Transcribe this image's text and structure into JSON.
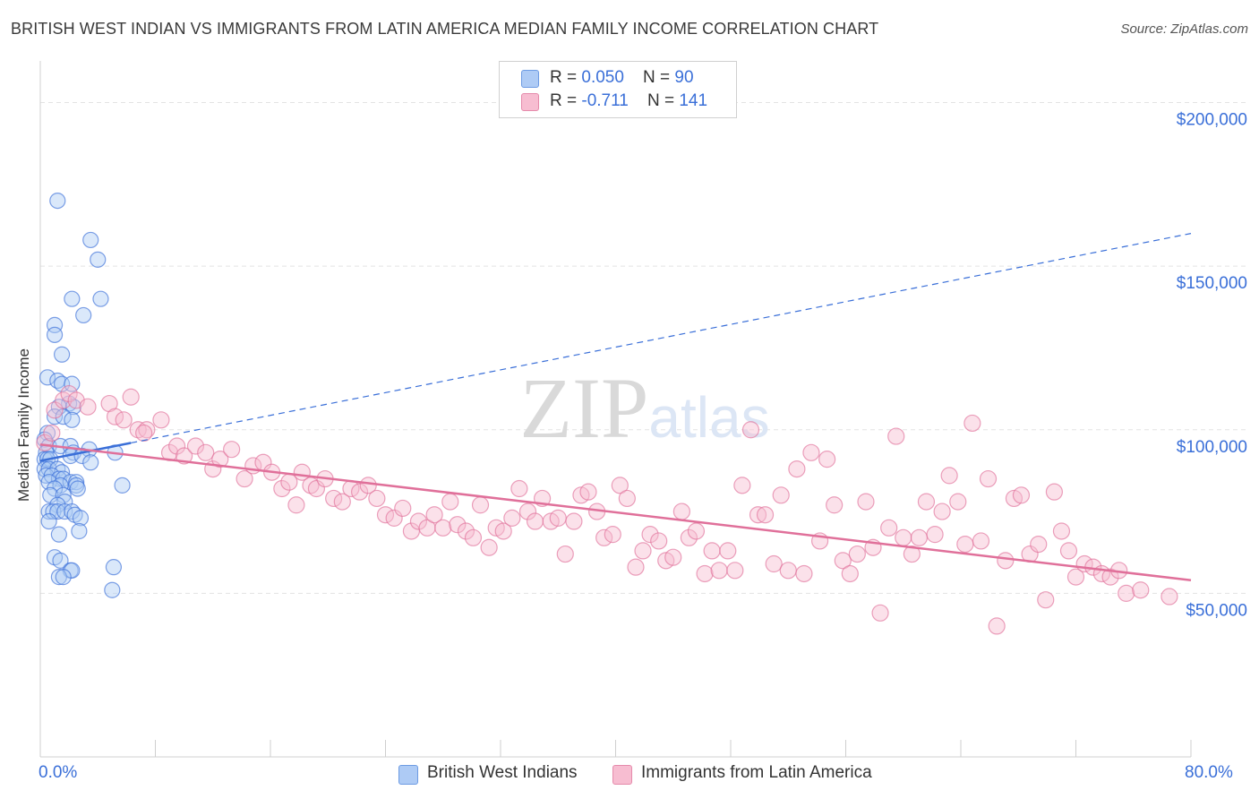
{
  "title": "BRITISH WEST INDIAN VS IMMIGRANTS FROM LATIN AMERICA MEDIAN FAMILY INCOME CORRELATION CHART",
  "source": "Source: ZipAtlas.com",
  "watermark": "ZIPatlas",
  "legend": {
    "rows": [
      {
        "r_label": "R = ",
        "r_value": "0.050",
        "n_label": "N = ",
        "n_value": "90",
        "color": "#aecbf5"
      },
      {
        "r_label": "R = ",
        "r_value": "-0.711",
        "n_label": "N = ",
        "n_value": "141",
        "color": "#f7bdd1"
      }
    ]
  },
  "bottom_legend": [
    {
      "label": "British West Indians",
      "color": "#aecbf5"
    },
    {
      "label": "Immigrants from Latin America",
      "color": "#f7bdd1"
    }
  ],
  "chart_data": {
    "type": "scatter",
    "ylabel": "Median Family Income",
    "x_tick_labels": [
      "0.0%",
      "80.0%"
    ],
    "y_tick_labels": [
      "$50,000",
      "$100,000",
      "$150,000",
      "$200,000"
    ],
    "xlim": [
      0,
      80
    ],
    "ylim": [
      0,
      210000
    ],
    "grid": true,
    "series": [
      {
        "name": "British West Indians",
        "color": "#3a6fd8",
        "fill": "#aecbf5",
        "trend": {
          "x": [
            0,
            80
          ],
          "y": [
            90500,
            160000
          ],
          "solid_until": 6.3
        },
        "points": [
          [
            1.2,
            170000
          ],
          [
            3.5,
            158000
          ],
          [
            4.0,
            152000
          ],
          [
            4.2,
            140000
          ],
          [
            2.2,
            140000
          ],
          [
            3.0,
            135000
          ],
          [
            1.0,
            132000
          ],
          [
            1.0,
            129000
          ],
          [
            1.5,
            123000
          ],
          [
            0.5,
            116000
          ],
          [
            1.2,
            115000
          ],
          [
            1.5,
            114000
          ],
          [
            2.2,
            114000
          ],
          [
            2.0,
            108000
          ],
          [
            1.3,
            107000
          ],
          [
            2.3,
            107000
          ],
          [
            1.0,
            104000
          ],
          [
            1.6,
            104000
          ],
          [
            2.2,
            103000
          ],
          [
            0.5,
            99000
          ],
          [
            0.3,
            97000
          ],
          [
            0.6,
            95000
          ],
          [
            1.4,
            95000
          ],
          [
            2.1,
            95000
          ],
          [
            3.4,
            94000
          ],
          [
            0.4,
            93000
          ],
          [
            2.3,
            93000
          ],
          [
            5.2,
            93000
          ],
          [
            2.1,
            92000
          ],
          [
            2.9,
            92000
          ],
          [
            0.3,
            91000
          ],
          [
            0.5,
            91000
          ],
          [
            0.7,
            91000
          ],
          [
            3.5,
            90000
          ],
          [
            0.3,
            88000
          ],
          [
            0.6,
            88000
          ],
          [
            1.2,
            88000
          ],
          [
            1.5,
            87000
          ],
          [
            0.4,
            86000
          ],
          [
            0.8,
            86000
          ],
          [
            1.3,
            85000
          ],
          [
            1.6,
            85000
          ],
          [
            0.6,
            84000
          ],
          [
            2.1,
            84000
          ],
          [
            2.5,
            84000
          ],
          [
            1.4,
            83000
          ],
          [
            2.5,
            83000
          ],
          [
            5.7,
            83000
          ],
          [
            1.0,
            82000
          ],
          [
            2.6,
            82000
          ],
          [
            0.7,
            80000
          ],
          [
            1.6,
            80000
          ],
          [
            1.7,
            78000
          ],
          [
            1.2,
            77000
          ],
          [
            0.6,
            75000
          ],
          [
            0.9,
            75000
          ],
          [
            1.2,
            75000
          ],
          [
            1.7,
            75000
          ],
          [
            2.2,
            75000
          ],
          [
            2.4,
            74000
          ],
          [
            2.8,
            73000
          ],
          [
            0.6,
            72000
          ],
          [
            1.3,
            68000
          ],
          [
            2.7,
            69000
          ],
          [
            1.0,
            61000
          ],
          [
            1.4,
            60000
          ],
          [
            5.1,
            58000
          ],
          [
            2.1,
            57000
          ],
          [
            2.2,
            57000
          ],
          [
            1.3,
            55000
          ],
          [
            1.6,
            55000
          ],
          [
            5.0,
            51000
          ]
        ]
      },
      {
        "name": "Immigrants from Latin America",
        "color": "#e0709a",
        "fill": "#f7bdd1",
        "trend": {
          "x": [
            0,
            80
          ],
          "y": [
            95500,
            54000
          ]
        },
        "points": [
          [
            0.3,
            96000
          ],
          [
            0.8,
            99000
          ],
          [
            1.0,
            106000
          ],
          [
            1.6,
            109000
          ],
          [
            2.0,
            111000
          ],
          [
            2.5,
            109000
          ],
          [
            3.3,
            107000
          ],
          [
            4.8,
            108000
          ],
          [
            5.2,
            104000
          ],
          [
            5.8,
            103000
          ],
          [
            6.3,
            110000
          ],
          [
            6.8,
            100000
          ],
          [
            7.4,
            100000
          ],
          [
            8.4,
            103000
          ],
          [
            7.2,
            99000
          ],
          [
            9.0,
            93000
          ],
          [
            9.5,
            95000
          ],
          [
            10.0,
            92000
          ],
          [
            10.8,
            95000
          ],
          [
            11.5,
            93000
          ],
          [
            12.0,
            88000
          ],
          [
            12.5,
            91000
          ],
          [
            13.3,
            94000
          ],
          [
            14.2,
            85000
          ],
          [
            14.8,
            89000
          ],
          [
            15.5,
            90000
          ],
          [
            16.1,
            87000
          ],
          [
            16.8,
            82000
          ],
          [
            17.3,
            84000
          ],
          [
            17.8,
            77000
          ],
          [
            18.2,
            87000
          ],
          [
            18.8,
            83000
          ],
          [
            19.2,
            82000
          ],
          [
            19.8,
            85000
          ],
          [
            20.4,
            79000
          ],
          [
            21.0,
            78000
          ],
          [
            21.6,
            82000
          ],
          [
            22.2,
            81000
          ],
          [
            22.8,
            83000
          ],
          [
            23.4,
            79000
          ],
          [
            24.0,
            74000
          ],
          [
            24.6,
            73000
          ],
          [
            25.2,
            76000
          ],
          [
            25.8,
            69000
          ],
          [
            26.3,
            72000
          ],
          [
            26.9,
            70000
          ],
          [
            27.4,
            74000
          ],
          [
            28.0,
            70000
          ],
          [
            28.5,
            78000
          ],
          [
            29.0,
            71000
          ],
          [
            29.6,
            69000
          ],
          [
            30.1,
            67000
          ],
          [
            30.6,
            77000
          ],
          [
            31.2,
            64000
          ],
          [
            31.7,
            70000
          ],
          [
            32.2,
            69000
          ],
          [
            32.8,
            73000
          ],
          [
            33.3,
            82000
          ],
          [
            33.9,
            75000
          ],
          [
            34.4,
            72000
          ],
          [
            34.9,
            79000
          ],
          [
            35.5,
            72000
          ],
          [
            36.0,
            73000
          ],
          [
            36.5,
            62000
          ],
          [
            37.1,
            72000
          ],
          [
            37.6,
            80000
          ],
          [
            38.1,
            81000
          ],
          [
            38.7,
            75000
          ],
          [
            39.2,
            67000
          ],
          [
            39.8,
            68000
          ],
          [
            40.3,
            83000
          ],
          [
            40.8,
            79000
          ],
          [
            41.4,
            58000
          ],
          [
            41.9,
            63000
          ],
          [
            42.4,
            68000
          ],
          [
            43.0,
            66000
          ],
          [
            43.5,
            60000
          ],
          [
            44.0,
            61000
          ],
          [
            44.6,
            75000
          ],
          [
            45.1,
            67000
          ],
          [
            45.6,
            69000
          ],
          [
            46.2,
            56000
          ],
          [
            46.7,
            63000
          ],
          [
            47.2,
            57000
          ],
          [
            47.8,
            63000
          ],
          [
            48.3,
            57000
          ],
          [
            48.8,
            83000
          ],
          [
            49.4,
            100000
          ],
          [
            49.9,
            74000
          ],
          [
            50.4,
            74000
          ],
          [
            51.0,
            59000
          ],
          [
            51.5,
            80000
          ],
          [
            52.0,
            57000
          ],
          [
            52.6,
            88000
          ],
          [
            53.1,
            56000
          ],
          [
            53.6,
            93000
          ],
          [
            54.2,
            66000
          ],
          [
            54.7,
            91000
          ],
          [
            55.2,
            77000
          ],
          [
            55.8,
            60000
          ],
          [
            56.3,
            56000
          ],
          [
            56.8,
            62000
          ],
          [
            57.4,
            78000
          ],
          [
            57.9,
            64000
          ],
          [
            58.4,
            44000
          ],
          [
            59.0,
            70000
          ],
          [
            59.5,
            98000
          ],
          [
            60.0,
            67000
          ],
          [
            60.6,
            62000
          ],
          [
            61.1,
            67000
          ],
          [
            61.6,
            78000
          ],
          [
            62.2,
            68000
          ],
          [
            62.7,
            75000
          ],
          [
            63.2,
            86000
          ],
          [
            63.8,
            78000
          ],
          [
            64.3,
            65000
          ],
          [
            64.8,
            102000
          ],
          [
            65.4,
            66000
          ],
          [
            65.9,
            85000
          ],
          [
            66.5,
            40000
          ],
          [
            67.1,
            60000
          ],
          [
            67.7,
            79000
          ],
          [
            68.2,
            80000
          ],
          [
            68.8,
            62000
          ],
          [
            69.4,
            65000
          ],
          [
            69.9,
            48000
          ],
          [
            70.5,
            81000
          ],
          [
            71.0,
            69000
          ],
          [
            71.5,
            63000
          ],
          [
            72.0,
            55000
          ],
          [
            72.6,
            59000
          ],
          [
            73.2,
            58000
          ],
          [
            73.8,
            56000
          ],
          [
            74.4,
            55000
          ],
          [
            75.0,
            57000
          ],
          [
            75.5,
            50000
          ],
          [
            76.5,
            51000
          ],
          [
            78.5,
            49000
          ]
        ]
      }
    ]
  }
}
